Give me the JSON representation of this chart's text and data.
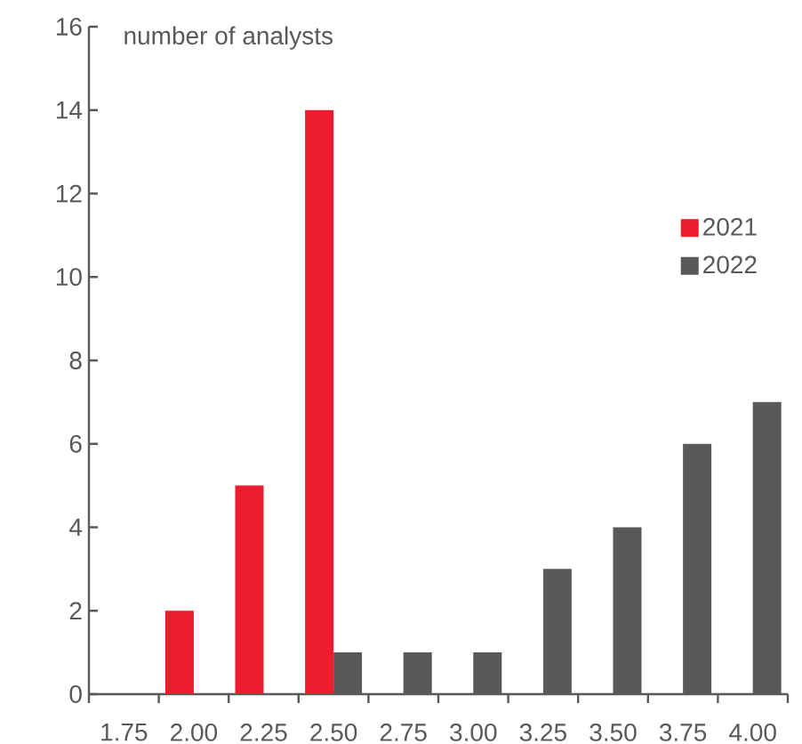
{
  "chart_data": {
    "type": "bar",
    "ylabel": "number of analysts",
    "categories": [
      "1.75",
      "2.00",
      "2.25",
      "2.50",
      "2.75",
      "3.00",
      "3.25",
      "3.50",
      "3.75",
      "4.00"
    ],
    "series": [
      {
        "name": "2021",
        "color": "#ed1c2e",
        "values": [
          null,
          2,
          5,
          14,
          null,
          null,
          null,
          null,
          null,
          null
        ]
      },
      {
        "name": "2022",
        "color": "#595959",
        "values": [
          null,
          null,
          null,
          1,
          1,
          1,
          3,
          4,
          6,
          7
        ]
      }
    ],
    "ylim": [
      0,
      16
    ],
    "yticks": [
      0,
      2,
      4,
      6,
      8,
      10,
      12,
      14,
      16
    ],
    "grid": false,
    "legend": "right"
  }
}
